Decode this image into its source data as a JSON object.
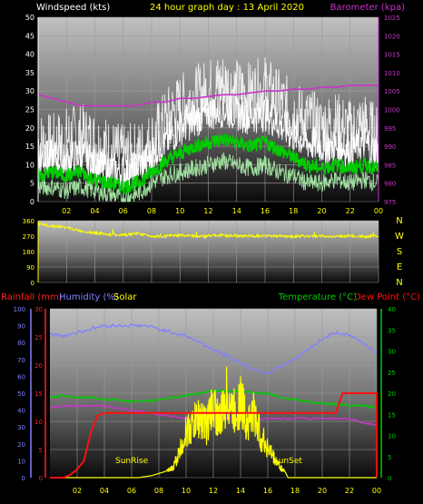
{
  "chart_data": [
    {
      "type": "line",
      "title": "24 hour graph day : 13 April 2020",
      "left_axis_label": "Windspeed (kts)",
      "right_axis_label": "Barometer (kpa)",
      "x_ticks": [
        "02",
        "04",
        "06",
        "08",
        "10",
        "12",
        "14",
        "16",
        "18",
        "20",
        "22",
        "00"
      ],
      "x_hours": [
        2,
        4,
        6,
        8,
        10,
        12,
        14,
        16,
        18,
        20,
        22,
        24
      ],
      "ylim_left": [
        0,
        50
      ],
      "yticks_left": [
        0,
        5,
        10,
        15,
        20,
        25,
        30,
        35,
        40,
        45,
        50
      ],
      "ylim_right": [
        975,
        1025
      ],
      "yticks_right": [
        975,
        980,
        985,
        990,
        995,
        1000,
        1005,
        1010,
        1015,
        1020,
        1025
      ],
      "series": [
        {
          "key": "gust",
          "color": "#ffffff",
          "x": [
            0,
            1,
            2,
            3,
            4,
            5,
            6,
            7,
            8,
            9,
            10,
            11,
            12,
            13,
            14,
            15,
            16,
            17,
            18,
            19,
            20,
            21,
            22,
            23,
            24
          ],
          "values": [
            12,
            12,
            11,
            13,
            10,
            9,
            8,
            9,
            13,
            16,
            20,
            22,
            24,
            25,
            24,
            23,
            24,
            21,
            18,
            16,
            15,
            15,
            14,
            16,
            13
          ]
        },
        {
          "key": "gust_spikes",
          "color": "#ffffff",
          "x": [
            0,
            1,
            2,
            3,
            4,
            5,
            6,
            7,
            8,
            9,
            10,
            11,
            12,
            13,
            14,
            15,
            16,
            17,
            18,
            19,
            20,
            21,
            22,
            23,
            24
          ],
          "values": [
            16,
            15,
            17,
            18,
            16,
            14,
            12,
            13,
            16,
            22,
            26,
            28,
            30,
            32,
            30,
            29,
            31,
            27,
            24,
            22,
            20,
            21,
            19,
            21,
            17
          ]
        },
        {
          "key": "average",
          "color": "#00cc00",
          "x": [
            0,
            1,
            2,
            3,
            4,
            5,
            6,
            7,
            8,
            9,
            10,
            11,
            12,
            13,
            14,
            15,
            16,
            17,
            18,
            19,
            20,
            21,
            22,
            23,
            24
          ],
          "values": [
            7,
            8,
            7,
            8,
            6,
            5,
            4,
            5,
            8,
            11,
            13,
            15,
            16,
            17,
            16,
            15,
            16,
            14,
            12,
            10,
            9,
            10,
            9,
            10,
            9
          ]
        },
        {
          "key": "lull",
          "color": "#a0e0a0",
          "x": [
            0,
            1,
            2,
            3,
            4,
            5,
            6,
            7,
            8,
            9,
            10,
            11,
            12,
            13,
            14,
            15,
            16,
            17,
            18,
            19,
            20,
            21,
            22,
            23,
            24
          ],
          "values": [
            4,
            4,
            3,
            4,
            3,
            2,
            1,
            2,
            5,
            7,
            8,
            9,
            10,
            11,
            10,
            9,
            10,
            8,
            7,
            5,
            5,
            6,
            5,
            6,
            5
          ]
        },
        {
          "key": "barometer",
          "color": "#cc33cc",
          "axis": "right",
          "x": [
            0,
            1,
            2,
            3,
            4,
            5,
            6,
            7,
            8,
            9,
            10,
            11,
            12,
            13,
            14,
            15,
            16,
            17,
            18,
            19,
            20,
            21,
            22,
            23,
            24
          ],
          "values": [
            1004,
            1003,
            1002,
            1001,
            1001,
            1001,
            1001,
            1001,
            1002,
            1002,
            1003,
            1003,
            1003.5,
            1004,
            1004,
            1004.5,
            1005,
            1005,
            1005.5,
            1005.5,
            1006,
            1006,
            1006.5,
            1006.5,
            1006.5
          ]
        }
      ]
    },
    {
      "type": "line",
      "title": "",
      "x_ticks": [
        "02",
        "04",
        "06",
        "08",
        "10",
        "12",
        "14",
        "16",
        "18",
        "20",
        "22",
        "00"
      ],
      "x_hours": [
        2,
        4,
        6,
        8,
        10,
        12,
        14,
        16,
        18,
        20,
        22,
        24
      ],
      "ylim": [
        0,
        360
      ],
      "yticks": [
        0,
        90,
        180,
        270,
        360
      ],
      "compass_labels": [
        "N",
        "W",
        "S",
        "E",
        "N"
      ],
      "series": [
        {
          "key": "direction",
          "color": "#ffff00",
          "x": [
            0,
            1,
            2,
            3,
            4,
            5,
            6,
            7,
            8,
            9,
            10,
            11,
            12,
            13,
            14,
            15,
            16,
            17,
            18,
            19,
            20,
            21,
            22,
            23,
            24
          ],
          "values": [
            340,
            330,
            320,
            300,
            290,
            280,
            275,
            285,
            270,
            270,
            275,
            270,
            272,
            275,
            270,
            272,
            270,
            270,
            268,
            270,
            270,
            268,
            270,
            268,
            272
          ]
        }
      ]
    },
    {
      "type": "line",
      "title": "",
      "labels_left": [
        "Rainfall (mm)",
        "Humidity (%)",
        "Solar"
      ],
      "labels_right": [
        "Temperature (°C)",
        "Dew Point (°C)"
      ],
      "x_ticks": [
        "02",
        "04",
        "06",
        "08",
        "10",
        "12",
        "14",
        "16",
        "18",
        "20",
        "22",
        "00"
      ],
      "x_hours": [
        2,
        4,
        6,
        8,
        10,
        12,
        14,
        16,
        18,
        20,
        22,
        24
      ],
      "ylim_humidity": [
        0,
        100
      ],
      "yticks_humidity": [
        0,
        10,
        20,
        30,
        40,
        50,
        60,
        70,
        80,
        90,
        100
      ],
      "ylim_rain": [
        0,
        30
      ],
      "yticks_rain": [
        0,
        5,
        10,
        15,
        20,
        25,
        30
      ],
      "ylim_temp": [
        0,
        40
      ],
      "yticks_temp": [
        0,
        5,
        10,
        15,
        20,
        25,
        30,
        35,
        40
      ],
      "annotations": [
        "SunRise",
        "SunSet"
      ],
      "series": [
        {
          "key": "humidity",
          "color": "#8080ff",
          "axis": "humidity",
          "x": [
            0,
            1,
            2,
            3,
            4,
            5,
            6,
            7,
            8,
            9,
            10,
            11,
            12,
            13,
            14,
            15,
            16,
            17,
            18,
            19,
            20,
            21,
            22,
            23,
            24
          ],
          "values": [
            85,
            84,
            86,
            88,
            90,
            90,
            90,
            90,
            88,
            86,
            84,
            80,
            76,
            72,
            68,
            64,
            62,
            66,
            70,
            76,
            82,
            86,
            84,
            80,
            74
          ]
        },
        {
          "key": "temperature",
          "color": "#00cc00",
          "axis": "temp",
          "x": [
            0,
            1,
            2,
            3,
            4,
            5,
            6,
            7,
            8,
            9,
            10,
            11,
            12,
            13,
            14,
            15,
            16,
            17,
            18,
            19,
            20,
            21,
            22,
            23,
            24
          ],
          "values": [
            19,
            19.5,
            19,
            19,
            18.5,
            18.5,
            18,
            18,
            18.5,
            19,
            19.5,
            20,
            20.5,
            20.5,
            20.5,
            20,
            20,
            19,
            18.5,
            18,
            17.5,
            17.5,
            17,
            17,
            16.5
          ]
        },
        {
          "key": "dewpoint",
          "color": "#cc33cc",
          "axis": "temp",
          "x": [
            0,
            1,
            2,
            3,
            4,
            5,
            6,
            7,
            8,
            9,
            10,
            11,
            12,
            13,
            14,
            15,
            16,
            17,
            18,
            19,
            20,
            21,
            22,
            23,
            24
          ],
          "values": [
            16.5,
            17,
            17,
            17,
            17,
            16.5,
            16,
            15.5,
            15,
            14.5,
            14,
            14,
            14,
            14,
            14,
            14,
            14,
            14,
            14,
            14,
            14,
            14,
            14,
            13,
            12.5
          ]
        },
        {
          "key": "rainfall",
          "color": "#ff1010",
          "axis": "rain",
          "x": [
            0,
            1,
            1.5,
            2,
            2.5,
            3,
            3.5,
            4,
            8,
            12,
            16,
            20,
            21,
            21.5,
            22,
            23,
            24,
            24
          ],
          "values": [
            0,
            0,
            0.5,
            1.5,
            3,
            8,
            11,
            11.5,
            11.5,
            11.5,
            11.5,
            11.5,
            11.5,
            15,
            15,
            15,
            15,
            0
          ]
        },
        {
          "key": "solar",
          "color": "#ffff00",
          "axis": "temp",
          "x": [
            0,
            5,
            6.5,
            7.5,
            8.5,
            9,
            9.5,
            10,
            10.5,
            11,
            11.5,
            12,
            12.5,
            13,
            13.5,
            14,
            14.5,
            15,
            15.5,
            16,
            16.5,
            17,
            17.5,
            24
          ],
          "values": [
            0,
            0,
            0,
            0.5,
            1.5,
            3,
            8,
            15,
            17,
            20,
            17,
            24,
            18,
            27,
            21,
            25,
            18,
            21,
            13,
            10,
            6,
            3,
            0,
            0
          ]
        }
      ]
    }
  ]
}
